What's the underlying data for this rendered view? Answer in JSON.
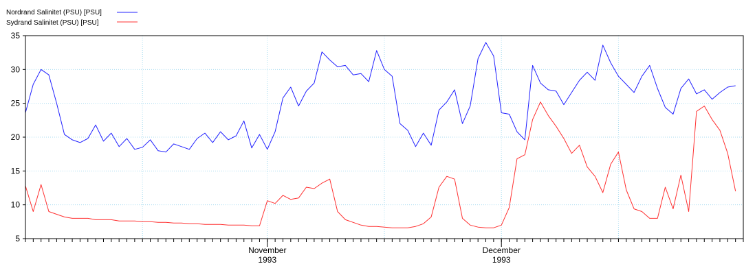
{
  "chart_data": {
    "type": "line",
    "title": "",
    "xlabel": "",
    "ylabel": "",
    "ylim": [
      5,
      35
    ],
    "yticks": [
      5,
      10,
      15,
      20,
      25,
      30,
      35
    ],
    "grid": true,
    "legend_placement": "top-left",
    "x_domain": [
      "1993-10-01",
      "1993-12-31"
    ],
    "x_major_ticks": [
      {
        "date": "1993-11-01",
        "month": "November",
        "year": "1993"
      },
      {
        "date": "1993-12-01",
        "month": "December",
        "year": "1993"
      }
    ],
    "series": [
      {
        "name": "Nordrand Salinitet (PSU) [PSU]",
        "color": "#2020ff",
        "points": [
          [
            "1993-10-01",
            23.6
          ],
          [
            "1993-10-02",
            27.8
          ],
          [
            "1993-10-03",
            30.0
          ],
          [
            "1993-10-04",
            29.2
          ],
          [
            "1993-10-05",
            25.0
          ],
          [
            "1993-10-06",
            20.4
          ],
          [
            "1993-10-07",
            19.6
          ],
          [
            "1993-10-08",
            19.2
          ],
          [
            "1993-10-09",
            19.8
          ],
          [
            "1993-10-10",
            21.8
          ],
          [
            "1993-10-11",
            19.4
          ],
          [
            "1993-10-12",
            20.6
          ],
          [
            "1993-10-13",
            18.6
          ],
          [
            "1993-10-14",
            19.8
          ],
          [
            "1993-10-15",
            18.2
          ],
          [
            "1993-10-16",
            18.5
          ],
          [
            "1993-10-17",
            19.6
          ],
          [
            "1993-10-18",
            18.0
          ],
          [
            "1993-10-19",
            17.8
          ],
          [
            "1993-10-20",
            19.0
          ],
          [
            "1993-10-21",
            18.6
          ],
          [
            "1993-10-22",
            18.2
          ],
          [
            "1993-10-23",
            19.8
          ],
          [
            "1993-10-24",
            20.6
          ],
          [
            "1993-10-25",
            19.2
          ],
          [
            "1993-10-26",
            20.8
          ],
          [
            "1993-10-27",
            19.6
          ],
          [
            "1993-10-28",
            20.2
          ],
          [
            "1993-10-29",
            22.4
          ],
          [
            "1993-10-30",
            18.4
          ],
          [
            "1993-10-31",
            20.4
          ],
          [
            "1993-11-01",
            18.2
          ],
          [
            "1993-11-02",
            20.8
          ],
          [
            "1993-11-03",
            25.8
          ],
          [
            "1993-11-04",
            27.4
          ],
          [
            "1993-11-05",
            24.6
          ],
          [
            "1993-11-06",
            26.8
          ],
          [
            "1993-11-07",
            28.0
          ],
          [
            "1993-11-08",
            32.6
          ],
          [
            "1993-11-09",
            31.4
          ],
          [
            "1993-11-10",
            30.4
          ],
          [
            "1993-11-11",
            30.6
          ],
          [
            "1993-11-12",
            29.2
          ],
          [
            "1993-11-13",
            29.4
          ],
          [
            "1993-11-14",
            28.2
          ],
          [
            "1993-11-15",
            32.8
          ],
          [
            "1993-11-16",
            30.0
          ],
          [
            "1993-11-17",
            29.0
          ],
          [
            "1993-11-18",
            22.0
          ],
          [
            "1993-11-19",
            21.0
          ],
          [
            "1993-11-20",
            18.6
          ],
          [
            "1993-11-21",
            20.6
          ],
          [
            "1993-11-22",
            18.8
          ],
          [
            "1993-11-23",
            24.0
          ],
          [
            "1993-11-24",
            25.2
          ],
          [
            "1993-11-25",
            27.0
          ],
          [
            "1993-11-26",
            22.0
          ],
          [
            "1993-11-27",
            24.6
          ],
          [
            "1993-11-28",
            31.6
          ],
          [
            "1993-11-29",
            34.0
          ],
          [
            "1993-11-30",
            32.0
          ],
          [
            "1993-12-01",
            23.6
          ],
          [
            "1993-12-02",
            23.4
          ],
          [
            "1993-12-03",
            20.8
          ],
          [
            "1993-12-04",
            19.6
          ],
          [
            "1993-12-05",
            30.6
          ],
          [
            "1993-12-06",
            28.0
          ],
          [
            "1993-12-07",
            27.0
          ],
          [
            "1993-12-08",
            26.8
          ],
          [
            "1993-12-09",
            24.8
          ],
          [
            "1993-12-10",
            26.6
          ],
          [
            "1993-12-11",
            28.4
          ],
          [
            "1993-12-12",
            29.6
          ],
          [
            "1993-12-13",
            28.4
          ],
          [
            "1993-12-14",
            33.6
          ],
          [
            "1993-12-15",
            31.0
          ],
          [
            "1993-12-16",
            29.0
          ],
          [
            "1993-12-17",
            27.8
          ],
          [
            "1993-12-18",
            26.6
          ],
          [
            "1993-12-19",
            29.0
          ],
          [
            "1993-12-20",
            30.6
          ],
          [
            "1993-12-21",
            27.2
          ],
          [
            "1993-12-22",
            24.4
          ],
          [
            "1993-12-23",
            23.4
          ],
          [
            "1993-12-24",
            27.2
          ],
          [
            "1993-12-25",
            28.6
          ],
          [
            "1993-12-26",
            26.4
          ],
          [
            "1993-12-27",
            27.0
          ],
          [
            "1993-12-28",
            25.6
          ],
          [
            "1993-12-29",
            26.6
          ],
          [
            "1993-12-30",
            27.4
          ],
          [
            "1993-12-31",
            27.6
          ]
        ]
      },
      {
        "name": "Sydrand Salinitet (PSU)  [PSU]",
        "color": "#ff3030",
        "points": [
          [
            "1993-10-01",
            12.8
          ],
          [
            "1993-10-02",
            9.0
          ],
          [
            "1993-10-03",
            13.0
          ],
          [
            "1993-10-04",
            9.0
          ],
          [
            "1993-10-05",
            8.6
          ],
          [
            "1993-10-06",
            8.2
          ],
          [
            "1993-10-07",
            8.0
          ],
          [
            "1993-10-08",
            8.0
          ],
          [
            "1993-10-09",
            8.0
          ],
          [
            "1993-10-10",
            7.8
          ],
          [
            "1993-10-11",
            7.8
          ],
          [
            "1993-10-12",
            7.8
          ],
          [
            "1993-10-13",
            7.6
          ],
          [
            "1993-10-14",
            7.6
          ],
          [
            "1993-10-15",
            7.6
          ],
          [
            "1993-10-16",
            7.5
          ],
          [
            "1993-10-17",
            7.5
          ],
          [
            "1993-10-18",
            7.4
          ],
          [
            "1993-10-19",
            7.4
          ],
          [
            "1993-10-20",
            7.3
          ],
          [
            "1993-10-21",
            7.3
          ],
          [
            "1993-10-22",
            7.2
          ],
          [
            "1993-10-23",
            7.2
          ],
          [
            "1993-10-24",
            7.1
          ],
          [
            "1993-10-25",
            7.1
          ],
          [
            "1993-10-26",
            7.1
          ],
          [
            "1993-10-27",
            7.0
          ],
          [
            "1993-10-28",
            7.0
          ],
          [
            "1993-10-29",
            7.0
          ],
          [
            "1993-10-30",
            6.9
          ],
          [
            "1993-10-31",
            6.9
          ],
          [
            "1993-11-01",
            10.6
          ],
          [
            "1993-11-02",
            10.2
          ],
          [
            "1993-11-03",
            11.4
          ],
          [
            "1993-11-04",
            10.8
          ],
          [
            "1993-11-05",
            11.0
          ],
          [
            "1993-11-06",
            12.6
          ],
          [
            "1993-11-07",
            12.4
          ],
          [
            "1993-11-08",
            13.2
          ],
          [
            "1993-11-09",
            13.8
          ],
          [
            "1993-11-10",
            9.0
          ],
          [
            "1993-11-11",
            7.8
          ],
          [
            "1993-11-12",
            7.4
          ],
          [
            "1993-11-13",
            7.0
          ],
          [
            "1993-11-14",
            6.8
          ],
          [
            "1993-11-15",
            6.8
          ],
          [
            "1993-11-16",
            6.7
          ],
          [
            "1993-11-17",
            6.6
          ],
          [
            "1993-11-18",
            6.6
          ],
          [
            "1993-11-19",
            6.6
          ],
          [
            "1993-11-20",
            6.8
          ],
          [
            "1993-11-21",
            7.2
          ],
          [
            "1993-11-22",
            8.2
          ],
          [
            "1993-11-23",
            12.6
          ],
          [
            "1993-11-24",
            14.2
          ],
          [
            "1993-11-25",
            13.8
          ],
          [
            "1993-11-26",
            8.0
          ],
          [
            "1993-11-27",
            7.0
          ],
          [
            "1993-11-28",
            6.7
          ],
          [
            "1993-11-29",
            6.6
          ],
          [
            "1993-11-30",
            6.6
          ],
          [
            "1993-12-01",
            7.0
          ],
          [
            "1993-12-02",
            9.6
          ],
          [
            "1993-12-03",
            16.8
          ],
          [
            "1993-12-04",
            17.4
          ],
          [
            "1993-12-05",
            22.6
          ],
          [
            "1993-12-06",
            25.2
          ],
          [
            "1993-12-07",
            23.2
          ],
          [
            "1993-12-08",
            21.6
          ],
          [
            "1993-12-09",
            19.8
          ],
          [
            "1993-12-10",
            17.6
          ],
          [
            "1993-12-11",
            18.8
          ],
          [
            "1993-12-12",
            15.6
          ],
          [
            "1993-12-13",
            14.2
          ],
          [
            "1993-12-14",
            11.8
          ],
          [
            "1993-12-15",
            16.0
          ],
          [
            "1993-12-16",
            17.8
          ],
          [
            "1993-12-17",
            12.2
          ],
          [
            "1993-12-18",
            9.4
          ],
          [
            "1993-12-19",
            9.0
          ],
          [
            "1993-12-20",
            8.0
          ],
          [
            "1993-12-21",
            8.0
          ],
          [
            "1993-12-22",
            12.6
          ],
          [
            "1993-12-23",
            9.4
          ],
          [
            "1993-12-24",
            14.4
          ],
          [
            "1993-12-25",
            9.0
          ],
          [
            "1993-12-26",
            23.8
          ],
          [
            "1993-12-27",
            24.6
          ],
          [
            "1993-12-28",
            22.6
          ],
          [
            "1993-12-29",
            21.0
          ],
          [
            "1993-12-30",
            17.6
          ],
          [
            "1993-12-31",
            12.0
          ]
        ]
      }
    ]
  }
}
